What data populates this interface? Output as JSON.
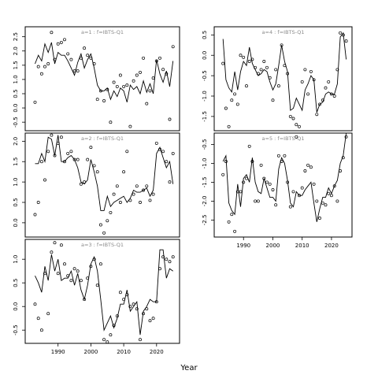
{
  "figure": {
    "xlabel": "Year"
  },
  "chart_data": [
    {
      "type": "line",
      "title": "a=1 : f=IBTS-Q1",
      "xlabel": "Year",
      "ylabel": "",
      "xlim": [
        1980,
        2027
      ],
      "ylim": [
        -0.8,
        2.85
      ],
      "yticks": [
        -0.5,
        0.0,
        0.5,
        1.0,
        1.5,
        2.0,
        2.5
      ],
      "xticks": [],
      "grid": false,
      "series": [
        {
          "kind": "line",
          "x": [
            1983,
            1984,
            1985,
            1986,
            1987,
            1988,
            1989,
            1990,
            1991,
            1992,
            1993,
            1994,
            1995,
            1996,
            1997,
            1998,
            1999,
            2000,
            2001,
            2002,
            2003,
            2004,
            2005,
            2006,
            2007,
            2008,
            2009,
            2010,
            2011,
            2012,
            2013,
            2014,
            2015,
            2016,
            2017,
            2018,
            2019,
            2020,
            2021,
            2022,
            2023,
            2024,
            2025
          ],
          "y": [
            1.55,
            1.85,
            1.65,
            2.25,
            1.95,
            2.3,
            1.55,
            1.95,
            1.85,
            1.85,
            1.65,
            1.4,
            1.15,
            1.6,
            1.9,
            1.4,
            1.7,
            1.9,
            1.4,
            0.8,
            0.6,
            0.6,
            0.7,
            0.3,
            0.6,
            0.4,
            0.7,
            0.6,
            0.2,
            0.8,
            0.65,
            0.75,
            0.5,
            0.95,
            0.55,
            0.85,
            0.5,
            1.7,
            1.2,
            0.9,
            1.3,
            0.75,
            1.65
          ]
        },
        {
          "kind": "points",
          "x": [
            1983,
            1984,
            1985,
            1986,
            1987,
            1988,
            1989,
            1990,
            1991,
            1992,
            1993,
            1994,
            1995,
            1996,
            1997,
            1998,
            1999,
            2000,
            2001,
            2002,
            2003,
            2004,
            2005,
            2006,
            2007,
            2008,
            2009,
            2010,
            2011,
            2012,
            2013,
            2014,
            2015,
            2016,
            2017,
            2018,
            2019,
            2020,
            2021,
            2022,
            2023,
            2024,
            2025
          ],
          "y": [
            0.2,
            1.45,
            1.2,
            1.45,
            1.55,
            2.65,
            1.7,
            2.25,
            2.3,
            2.4,
            1.9,
            1.7,
            1.3,
            1.3,
            1.75,
            2.1,
            1.85,
            1.75,
            1.55,
            0.3,
            0.6,
            0.25,
            0.65,
            -0.5,
            0.9,
            0.75,
            1.15,
            0.75,
            0.8,
            -0.65,
            0.95,
            1.15,
            1.25,
            1.75,
            0.15,
            0.6,
            1.05,
            1.65,
            1.75,
            1.35,
            1.2,
            -0.4,
            2.15
          ]
        }
      ]
    },
    {
      "type": "line",
      "title": "a=2 : f=IBTS-Q1",
      "xlabel": "Year",
      "ylabel": "",
      "xlim": [
        1980,
        2027
      ],
      "ylim": [
        -0.35,
        2.2
      ],
      "yticks": [
        0.0,
        0.5,
        1.0,
        1.5,
        2.0
      ],
      "xticks": [],
      "grid": false,
      "series": [
        {
          "kind": "line",
          "x": [
            1983,
            1984,
            1985,
            1986,
            1987,
            1988,
            1989,
            1990,
            1991,
            1992,
            1993,
            1994,
            1995,
            1996,
            1997,
            1998,
            1999,
            2000,
            2001,
            2002,
            2003,
            2004,
            2005,
            2006,
            2007,
            2008,
            2009,
            2010,
            2011,
            2012,
            2013,
            2014,
            2015,
            2016,
            2017,
            2018,
            2019,
            2020,
            2021,
            2022,
            2023,
            2024,
            2025
          ],
          "y": [
            1.45,
            1.45,
            1.7,
            1.5,
            2.1,
            2.05,
            1.65,
            2.15,
            1.5,
            1.5,
            1.6,
            1.65,
            1.55,
            1.35,
            1.0,
            0.95,
            1.05,
            1.55,
            1.25,
            0.9,
            0.3,
            0.3,
            0.65,
            0.4,
            0.5,
            0.55,
            0.6,
            0.65,
            0.5,
            0.6,
            0.8,
            0.75,
            0.75,
            0.8,
            0.85,
            0.65,
            0.8,
            1.7,
            1.85,
            1.6,
            1.35,
            1.5,
            0.95
          ]
        },
        {
          "kind": "points",
          "x": [
            1983,
            1984,
            1985,
            1986,
            1987,
            1988,
            1989,
            1990,
            1991,
            1992,
            1993,
            1994,
            1995,
            1996,
            1997,
            1998,
            1999,
            2000,
            2001,
            2002,
            2003,
            2004,
            2005,
            2006,
            2007,
            2008,
            2009,
            2010,
            2011,
            2012,
            2013,
            2014,
            2015,
            2016,
            2017,
            2018,
            2019,
            2020,
            2021,
            2022,
            2023,
            2024,
            2025
          ],
          "y": [
            0.2,
            0.5,
            1.5,
            1.05,
            1.75,
            2.15,
            1.65,
            1.95,
            2.1,
            1.5,
            1.7,
            1.75,
            1.55,
            1.55,
            0.95,
            1.0,
            1.55,
            1.85,
            1.4,
            1.25,
            -0.05,
            -0.25,
            0.05,
            0.25,
            0.7,
            0.9,
            0.5,
            1.25,
            1.75,
            0.55,
            0.7,
            0.9,
            0.5,
            0.8,
            0.9,
            0.55,
            0.7,
            1.95,
            1.8,
            1.75,
            1.5,
            1.0,
            1.7
          ]
        }
      ]
    },
    {
      "type": "line",
      "title": "a=3 : f=IBTS-Q1",
      "xlabel": "Year",
      "ylabel": "",
      "xlim": [
        1980,
        2027
      ],
      "ylim": [
        -0.78,
        1.42
      ],
      "yticks": [
        -0.5,
        0.0,
        0.5,
        1.0
      ],
      "xticks": [
        1990,
        2000,
        2010,
        2020
      ],
      "grid": false,
      "series": [
        {
          "kind": "line",
          "x": [
            1983,
            1984,
            1985,
            1986,
            1987,
            1988,
            1989,
            1990,
            1991,
            1992,
            1993,
            1994,
            1995,
            1996,
            1997,
            1998,
            1999,
            2000,
            2001,
            2002,
            2003,
            2004,
            2005,
            2006,
            2007,
            2008,
            2009,
            2010,
            2011,
            2012,
            2013,
            2014,
            2015,
            2016,
            2017,
            2018,
            2019,
            2020,
            2021,
            2022,
            2023,
            2024,
            2025
          ],
          "y": [
            0.65,
            0.5,
            0.3,
            0.85,
            0.55,
            1.1,
            0.75,
            1.0,
            0.55,
            0.6,
            0.6,
            0.75,
            0.45,
            0.7,
            0.35,
            0.15,
            0.45,
            0.9,
            1.05,
            0.75,
            0.15,
            -0.5,
            -0.35,
            -0.2,
            -0.45,
            -0.25,
            0.05,
            0.05,
            0.35,
            -0.1,
            0.0,
            0.1,
            -0.6,
            -0.1,
            0.0,
            0.15,
            0.1,
            0.1,
            1.2,
            1.2,
            0.6,
            0.8,
            0.75
          ]
        },
        {
          "kind": "points",
          "x": [
            1983,
            1984,
            1985,
            1986,
            1987,
            1988,
            1989,
            1990,
            1991,
            1992,
            1993,
            1994,
            1995,
            1996,
            1997,
            1998,
            1999,
            2000,
            2001,
            2002,
            2003,
            2004,
            2005,
            2006,
            2007,
            2008,
            2009,
            2010,
            2011,
            2012,
            2013,
            2014,
            2015,
            2016,
            2017,
            2018,
            2019,
            2020,
            2021,
            2022,
            2023,
            2024,
            2025
          ],
          "y": [
            0.05,
            -0.25,
            -0.5,
            0.7,
            -0.15,
            1.15,
            1.35,
            0.7,
            1.3,
            0.9,
            0.65,
            0.55,
            0.8,
            0.75,
            0.55,
            0.15,
            0.6,
            0.85,
            1.0,
            0.45,
            0.9,
            -0.7,
            -0.75,
            -0.6,
            -0.4,
            -0.2,
            0.3,
            0.15,
            0.25,
            0.0,
            0.05,
            -0.05,
            -0.7,
            -0.15,
            -0.05,
            -0.3,
            -0.25,
            0.1,
            0.8,
            1.05,
            1.0,
            0.95,
            1.05
          ]
        }
      ]
    },
    {
      "type": "line",
      "title": "a=4 : f=IBTS-Q1",
      "xlabel": "Year",
      "ylabel": "",
      "xlim": [
        1980,
        2027
      ],
      "ylim": [
        -1.85,
        0.7
      ],
      "yticks": [
        -1.5,
        -1.0,
        -0.5,
        0.0,
        0.5
      ],
      "xticks": [],
      "grid": false,
      "series": [
        {
          "kind": "line",
          "x": [
            1983,
            1984,
            1985,
            1986,
            1987,
            1988,
            1989,
            1990,
            1991,
            1992,
            1993,
            1994,
            1995,
            1996,
            1997,
            1998,
            1999,
            2000,
            2001,
            2002,
            2003,
            2004,
            2005,
            2006,
            2007,
            2008,
            2009,
            2010,
            2011,
            2012,
            2013,
            2014,
            2015,
            2016,
            2017,
            2018,
            2019,
            2020,
            2021,
            2022,
            2023,
            2024,
            2025
          ],
          "y": [
            0.4,
            -0.6,
            -0.8,
            -0.9,
            -0.4,
            -0.85,
            -0.4,
            -0.15,
            -0.25,
            0.2,
            -0.2,
            -0.35,
            -0.5,
            -0.45,
            -0.35,
            -0.4,
            -0.65,
            -0.85,
            -0.7,
            -0.25,
            0.25,
            -0.15,
            -0.4,
            -1.35,
            -1.3,
            -1.05,
            -1.2,
            -1.35,
            -0.85,
            -0.7,
            -0.5,
            -0.6,
            -1.4,
            -1.2,
            -1.15,
            -0.95,
            -0.9,
            -0.95,
            -0.95,
            -0.7,
            0.45,
            0.55,
            -0.1
          ]
        },
        {
          "kind": "points",
          "x": [
            1983,
            1984,
            1985,
            1986,
            1987,
            1988,
            1989,
            1990,
            1991,
            1992,
            1993,
            1994,
            1995,
            1996,
            1997,
            1998,
            1999,
            2000,
            2001,
            2002,
            2003,
            2004,
            2005,
            2006,
            2007,
            2008,
            2009,
            2010,
            2011,
            2012,
            2013,
            2014,
            2015,
            2016,
            2017,
            2018,
            2019,
            2020,
            2021,
            2022,
            2023,
            2024,
            2025
          ],
          "y": [
            -0.2,
            -1.3,
            -1.75,
            -1.1,
            -0.95,
            -1.2,
            0.0,
            -0.05,
            -0.75,
            -0.15,
            -0.1,
            -0.3,
            -0.45,
            -0.35,
            -0.15,
            -0.3,
            -0.55,
            -1.1,
            -0.35,
            -0.75,
            0.25,
            -0.25,
            -0.45,
            -1.5,
            -1.55,
            -1.7,
            -1.75,
            -0.65,
            -0.35,
            -0.95,
            -0.4,
            -0.6,
            -1.45,
            -1.2,
            -1.1,
            -0.8,
            -0.65,
            -0.95,
            -1.0,
            -0.35,
            0.55,
            0.5,
            0.35
          ]
        }
      ]
    },
    {
      "type": "line",
      "title": "a=5 : f=IBTS-Q1",
      "xlabel": "Year",
      "ylabel": "",
      "xlim": [
        1980,
        2027
      ],
      "ylim": [
        -2.95,
        -0.2
      ],
      "yticks": [
        -2.5,
        -2.0,
        -1.5,
        -1.0,
        -0.5
      ],
      "xticks": [
        1990,
        2000,
        2010,
        2020
      ],
      "grid": false,
      "series": [
        {
          "kind": "line",
          "x": [
            1983,
            1984,
            1985,
            1986,
            1987,
            1988,
            1989,
            1990,
            1991,
            1992,
            1993,
            1994,
            1995,
            1996,
            1997,
            1998,
            1999,
            2000,
            2001,
            2002,
            2003,
            2004,
            2005,
            2006,
            2007,
            2008,
            2009,
            2010,
            2011,
            2012,
            2013,
            2014,
            2015,
            2016,
            2017,
            2018,
            2019,
            2020,
            2021,
            2022,
            2023,
            2024,
            2025
          ],
          "y": [
            -0.95,
            -0.8,
            -2.05,
            -2.25,
            -2.35,
            -1.55,
            -2.15,
            -1.4,
            -1.3,
            -1.5,
            -0.85,
            -1.5,
            -1.75,
            -1.8,
            -1.4,
            -1.65,
            -1.9,
            -1.9,
            -2.0,
            -1.15,
            -0.85,
            -1.0,
            -1.45,
            -2.05,
            -2.15,
            -1.75,
            -1.85,
            -1.85,
            -1.7,
            -1.6,
            -1.5,
            -2.05,
            -2.55,
            -2.2,
            -1.9,
            -1.9,
            -1.65,
            -1.8,
            -1.6,
            -1.45,
            -1.0,
            -0.8,
            -0.2
          ]
        },
        {
          "kind": "points",
          "x": [
            1983,
            1984,
            1985,
            1986,
            1987,
            1988,
            1989,
            1990,
            1991,
            1992,
            1993,
            1994,
            1995,
            1996,
            1997,
            1998,
            1999,
            2000,
            2001,
            2002,
            2003,
            2004,
            2005,
            2006,
            2007,
            2008,
            2009,
            2010,
            2011,
            2012,
            2013,
            2014,
            2015,
            2016,
            2017,
            2018,
            2019,
            2020,
            2021,
            2022,
            2023,
            2024,
            2025
          ],
          "y": [
            -1.3,
            -0.95,
            -2.55,
            -2.35,
            -2.8,
            -1.75,
            -1.75,
            -1.5,
            -1.4,
            -0.55,
            -0.95,
            -2.0,
            -2.0,
            -1.05,
            -1.4,
            -1.5,
            -1.55,
            -1.7,
            -2.1,
            -0.8,
            -0.95,
            -0.8,
            -1.5,
            -2.15,
            -1.75,
            -0.3,
            -1.85,
            -1.65,
            -1.2,
            -1.05,
            -1.1,
            -1.55,
            -2.0,
            -2.45,
            -2.05,
            -2.1,
            -1.8,
            -1.85,
            -1.6,
            -2.0,
            -1.2,
            -0.85,
            -0.3
          ]
        }
      ]
    }
  ]
}
